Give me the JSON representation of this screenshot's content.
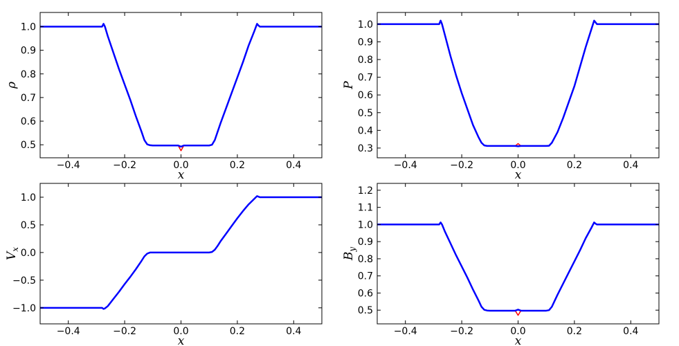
{
  "chart_data": [
    {
      "type": "line",
      "ylabel": "ρ",
      "xlabel": "x",
      "x": [
        -0.5,
        -0.4,
        -0.3,
        -0.28,
        -0.275,
        -0.27,
        -0.26,
        -0.24,
        -0.22,
        -0.2,
        -0.18,
        -0.16,
        -0.14,
        -0.13,
        -0.12,
        -0.11,
        -0.1,
        -0.05,
        -0.01,
        0,
        0.01,
        0.05,
        0.1,
        0.11,
        0.12,
        0.13,
        0.14,
        0.16,
        0.18,
        0.2,
        0.22,
        0.24,
        0.26,
        0.27,
        0.275,
        0.28,
        0.3,
        0.4,
        0.5
      ],
      "series": [
        {
          "color": "#ff0000",
          "values": [
            1.0,
            1.0,
            1.0,
            1.0,
            1.012,
            1.0,
            0.96,
            0.89,
            0.82,
            0.755,
            0.69,
            0.62,
            0.555,
            0.52,
            0.502,
            0.498,
            0.497,
            0.497,
            0.497,
            0.475,
            0.497,
            0.497,
            0.497,
            0.5,
            0.52,
            0.555,
            0.59,
            0.655,
            0.72,
            0.785,
            0.85,
            0.92,
            0.98,
            1.012,
            1.005,
            1.0,
            1.0,
            1.0,
            1.0
          ]
        },
        {
          "color": "#0000ff",
          "values": [
            1.0,
            1.0,
            1.0,
            1.0,
            1.012,
            1.0,
            0.96,
            0.89,
            0.82,
            0.755,
            0.69,
            0.62,
            0.555,
            0.52,
            0.502,
            0.498,
            0.497,
            0.497,
            0.497,
            0.492,
            0.497,
            0.497,
            0.497,
            0.5,
            0.52,
            0.555,
            0.59,
            0.655,
            0.72,
            0.785,
            0.85,
            0.92,
            0.98,
            1.012,
            1.005,
            1.0,
            1.0,
            1.0,
            1.0
          ]
        }
      ],
      "xlim": [
        -0.5,
        0.5
      ],
      "ylim": [
        0.445,
        1.06
      ],
      "xticks": [
        {
          "value": -0.4,
          "label": "−0.4"
        },
        {
          "value": -0.2,
          "label": "−0.2"
        },
        {
          "value": 0,
          "label": "0.0"
        },
        0.2,
        0.4
      ],
      "yticks": [
        0.5,
        0.6,
        0.7,
        0.8,
        0.9,
        {
          "value": 1,
          "label": "1.0"
        }
      ]
    },
    {
      "type": "line",
      "ylabel": "P",
      "xlabel": "x",
      "x": [
        -0.5,
        -0.4,
        -0.3,
        -0.28,
        -0.275,
        -0.27,
        -0.26,
        -0.24,
        -0.22,
        -0.2,
        -0.18,
        -0.16,
        -0.14,
        -0.13,
        -0.12,
        -0.11,
        -0.1,
        -0.05,
        -0.01,
        0,
        0.01,
        0.05,
        0.1,
        0.11,
        0.12,
        0.13,
        0.14,
        0.16,
        0.18,
        0.2,
        0.22,
        0.24,
        0.26,
        0.27,
        0.275,
        0.28,
        0.3,
        0.4,
        0.5
      ],
      "series": [
        {
          "color": "#ff0000",
          "values": [
            1.0,
            1.0,
            1.0,
            1.0,
            1.02,
            1.0,
            0.94,
            0.82,
            0.71,
            0.61,
            0.52,
            0.43,
            0.36,
            0.33,
            0.315,
            0.312,
            0.312,
            0.312,
            0.312,
            0.325,
            0.312,
            0.312,
            0.312,
            0.313,
            0.33,
            0.36,
            0.39,
            0.47,
            0.56,
            0.65,
            0.76,
            0.87,
            0.97,
            1.02,
            1.01,
            1.0,
            1.0,
            1.0,
            1.0
          ]
        },
        {
          "color": "#0000ff",
          "values": [
            1.0,
            1.0,
            1.0,
            1.0,
            1.02,
            1.0,
            0.94,
            0.82,
            0.71,
            0.61,
            0.52,
            0.43,
            0.36,
            0.33,
            0.315,
            0.312,
            0.312,
            0.312,
            0.312,
            0.31,
            0.312,
            0.312,
            0.312,
            0.313,
            0.33,
            0.36,
            0.39,
            0.47,
            0.56,
            0.65,
            0.76,
            0.87,
            0.97,
            1.02,
            1.01,
            1.0,
            1.0,
            1.0,
            1.0
          ]
        }
      ],
      "xlim": [
        -0.5,
        0.5
      ],
      "ylim": [
        0.245,
        1.066
      ],
      "xticks": [
        {
          "value": -0.4,
          "label": "−0.4"
        },
        {
          "value": -0.2,
          "label": "−0.2"
        },
        {
          "value": 0,
          "label": "0.0"
        },
        0.2,
        0.4
      ],
      "yticks": [
        0.3,
        0.4,
        0.5,
        0.6,
        0.7,
        0.8,
        0.9,
        {
          "value": 1,
          "label": "1.0"
        }
      ]
    },
    {
      "type": "line",
      "ylabel": "V",
      "ylabel_sub": "x",
      "xlabel": "x",
      "x": [
        -0.5,
        -0.4,
        -0.3,
        -0.28,
        -0.275,
        -0.27,
        -0.26,
        -0.24,
        -0.22,
        -0.2,
        -0.18,
        -0.16,
        -0.14,
        -0.13,
        -0.12,
        -0.11,
        -0.1,
        -0.05,
        -0.01,
        0,
        0.01,
        0.05,
        0.1,
        0.11,
        0.12,
        0.13,
        0.14,
        0.16,
        0.18,
        0.2,
        0.22,
        0.24,
        0.26,
        0.27,
        0.275,
        0.28,
        0.3,
        0.4,
        0.5
      ],
      "series": [
        {
          "color": "#ff0000",
          "values": [
            -1.0,
            -1.0,
            -1.0,
            -1.0,
            -1.02,
            -1.01,
            -0.97,
            -0.84,
            -0.71,
            -0.57,
            -0.44,
            -0.3,
            -0.15,
            -0.07,
            -0.02,
            0,
            0,
            0,
            0,
            0,
            0,
            0,
            0,
            0.01,
            0.05,
            0.12,
            0.2,
            0.34,
            0.48,
            0.62,
            0.75,
            0.87,
            0.97,
            1.02,
            1.01,
            1.0,
            1.0,
            1.0,
            1.0
          ]
        },
        {
          "color": "#0000ff",
          "values": [
            -1.0,
            -1.0,
            -1.0,
            -1.0,
            -1.02,
            -1.01,
            -0.97,
            -0.84,
            -0.71,
            -0.57,
            -0.44,
            -0.3,
            -0.15,
            -0.07,
            -0.02,
            0,
            0,
            0,
            0,
            0,
            0,
            0,
            0,
            0.01,
            0.05,
            0.12,
            0.2,
            0.34,
            0.48,
            0.62,
            0.75,
            0.87,
            0.97,
            1.02,
            1.01,
            1.0,
            1.0,
            1.0,
            1.0
          ]
        }
      ],
      "xlim": [
        -0.5,
        0.5
      ],
      "ylim": [
        -1.29,
        1.25
      ],
      "xticks": [
        {
          "value": -0.4,
          "label": "−0.4"
        },
        {
          "value": -0.2,
          "label": "−0.2"
        },
        {
          "value": 0,
          "label": "0.0"
        },
        0.2,
        0.4
      ],
      "yticks": [
        {
          "value": -1,
          "label": "−1.0"
        },
        {
          "value": -0.5,
          "label": "−0.5"
        },
        {
          "value": 0,
          "label": "0.0"
        },
        0.5,
        {
          "value": 1,
          "label": "1.0"
        }
      ]
    },
    {
      "type": "line",
      "ylabel": "B",
      "ylabel_sub": "y",
      "xlabel": "x",
      "x": [
        -0.5,
        -0.4,
        -0.3,
        -0.28,
        -0.275,
        -0.27,
        -0.26,
        -0.24,
        -0.22,
        -0.2,
        -0.18,
        -0.16,
        -0.14,
        -0.13,
        -0.12,
        -0.11,
        -0.1,
        -0.05,
        -0.01,
        0,
        0.01,
        0.05,
        0.1,
        0.11,
        0.12,
        0.13,
        0.14,
        0.16,
        0.18,
        0.2,
        0.22,
        0.24,
        0.26,
        0.27,
        0.275,
        0.28,
        0.3,
        0.4,
        0.5
      ],
      "series": [
        {
          "color": "#ff0000",
          "values": [
            1.0,
            1.0,
            1.0,
            1.0,
            1.012,
            1.0,
            0.96,
            0.89,
            0.82,
            0.755,
            0.69,
            0.62,
            0.555,
            0.52,
            0.502,
            0.498,
            0.497,
            0.497,
            0.497,
            0.47,
            0.497,
            0.497,
            0.497,
            0.5,
            0.52,
            0.555,
            0.59,
            0.655,
            0.72,
            0.785,
            0.85,
            0.92,
            0.98,
            1.012,
            1.005,
            1.0,
            1.0,
            1.0,
            1.0
          ]
        },
        {
          "color": "#0000ff",
          "values": [
            1.0,
            1.0,
            1.0,
            1.0,
            1.012,
            1.0,
            0.96,
            0.89,
            0.82,
            0.755,
            0.69,
            0.62,
            0.555,
            0.52,
            0.502,
            0.498,
            0.497,
            0.497,
            0.497,
            0.503,
            0.497,
            0.497,
            0.497,
            0.5,
            0.52,
            0.555,
            0.59,
            0.655,
            0.72,
            0.785,
            0.85,
            0.92,
            0.98,
            1.012,
            1.005,
            1.0,
            1.0,
            1.0,
            1.0
          ]
        }
      ],
      "xlim": [
        -0.5,
        0.5
      ],
      "ylim": [
        0.42,
        1.24
      ],
      "xticks": [
        {
          "value": -0.4,
          "label": "−0.4"
        },
        {
          "value": -0.2,
          "label": "−0.2"
        },
        {
          "value": 0,
          "label": "0.0"
        },
        0.2,
        0.4
      ],
      "yticks": [
        0.5,
        0.6,
        0.7,
        0.8,
        0.9,
        {
          "value": 1,
          "label": "1.0"
        },
        1.1,
        1.2
      ]
    }
  ]
}
